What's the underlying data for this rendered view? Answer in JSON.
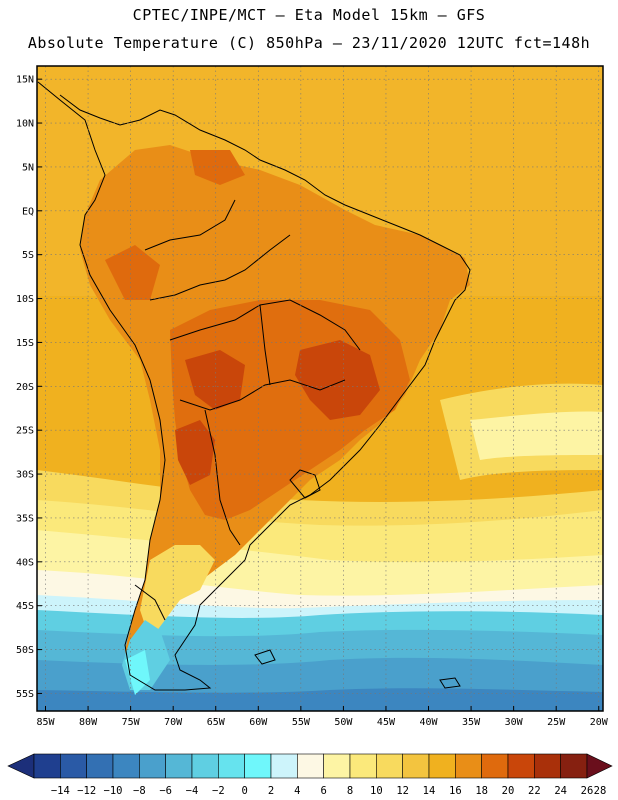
{
  "header": {
    "line1": "CPTEC/INPE/MCT –  Eta Model 15km – GFS",
    "line2": "Absolute Temperature (C) 850hPa – 23/11/2020 12UTC fct=148h"
  },
  "map": {
    "lat_labels": [
      "15N",
      "10N",
      "5N",
      "EQ",
      "5S",
      "10S",
      "15S",
      "20S",
      "25S",
      "30S",
      "35S",
      "40S",
      "45S",
      "50S",
      "55S"
    ],
    "lat_values": [
      15,
      10,
      5,
      0,
      -5,
      -10,
      -15,
      -20,
      -25,
      -30,
      -35,
      -40,
      -45,
      -50,
      -55
    ],
    "lon_labels": [
      "85W",
      "80W",
      "75W",
      "70W",
      "65W",
      "60W",
      "55W",
      "50W",
      "45W",
      "40W",
      "35W",
      "30W",
      "25W",
      "20W"
    ],
    "lon_values": [
      -85,
      -80,
      -75,
      -70,
      -65,
      -60,
      -55,
      -50,
      -45,
      -40,
      -35,
      -30,
      -25,
      -20
    ],
    "lon_range": [
      -86,
      -19.5
    ],
    "lat_range": [
      -57,
      16.5
    ]
  },
  "colorbar": {
    "labels": [
      "-14",
      "-12",
      "-10",
      "-8",
      "-6",
      "-4",
      "-2",
      "0",
      "2",
      "4",
      "6",
      "8",
      "10",
      "12",
      "14",
      "16",
      "18",
      "20",
      "22",
      "24",
      "26",
      "28"
    ],
    "colors": [
      "#1f3f8f",
      "#2a5aa6",
      "#3370b3",
      "#3c86c0",
      "#4aa0cc",
      "#55b7d6",
      "#5fcfe2",
      "#66e3ee",
      "#6ff7fb",
      "#cdf4fb",
      "#fdf8e4",
      "#fdf4a4",
      "#fbe97b",
      "#f8da5e",
      "#f3c43f",
      "#f0b11f",
      "#e98e17",
      "#df6a0d",
      "#c9460a",
      "#a9300a",
      "#862010"
    ]
  }
}
